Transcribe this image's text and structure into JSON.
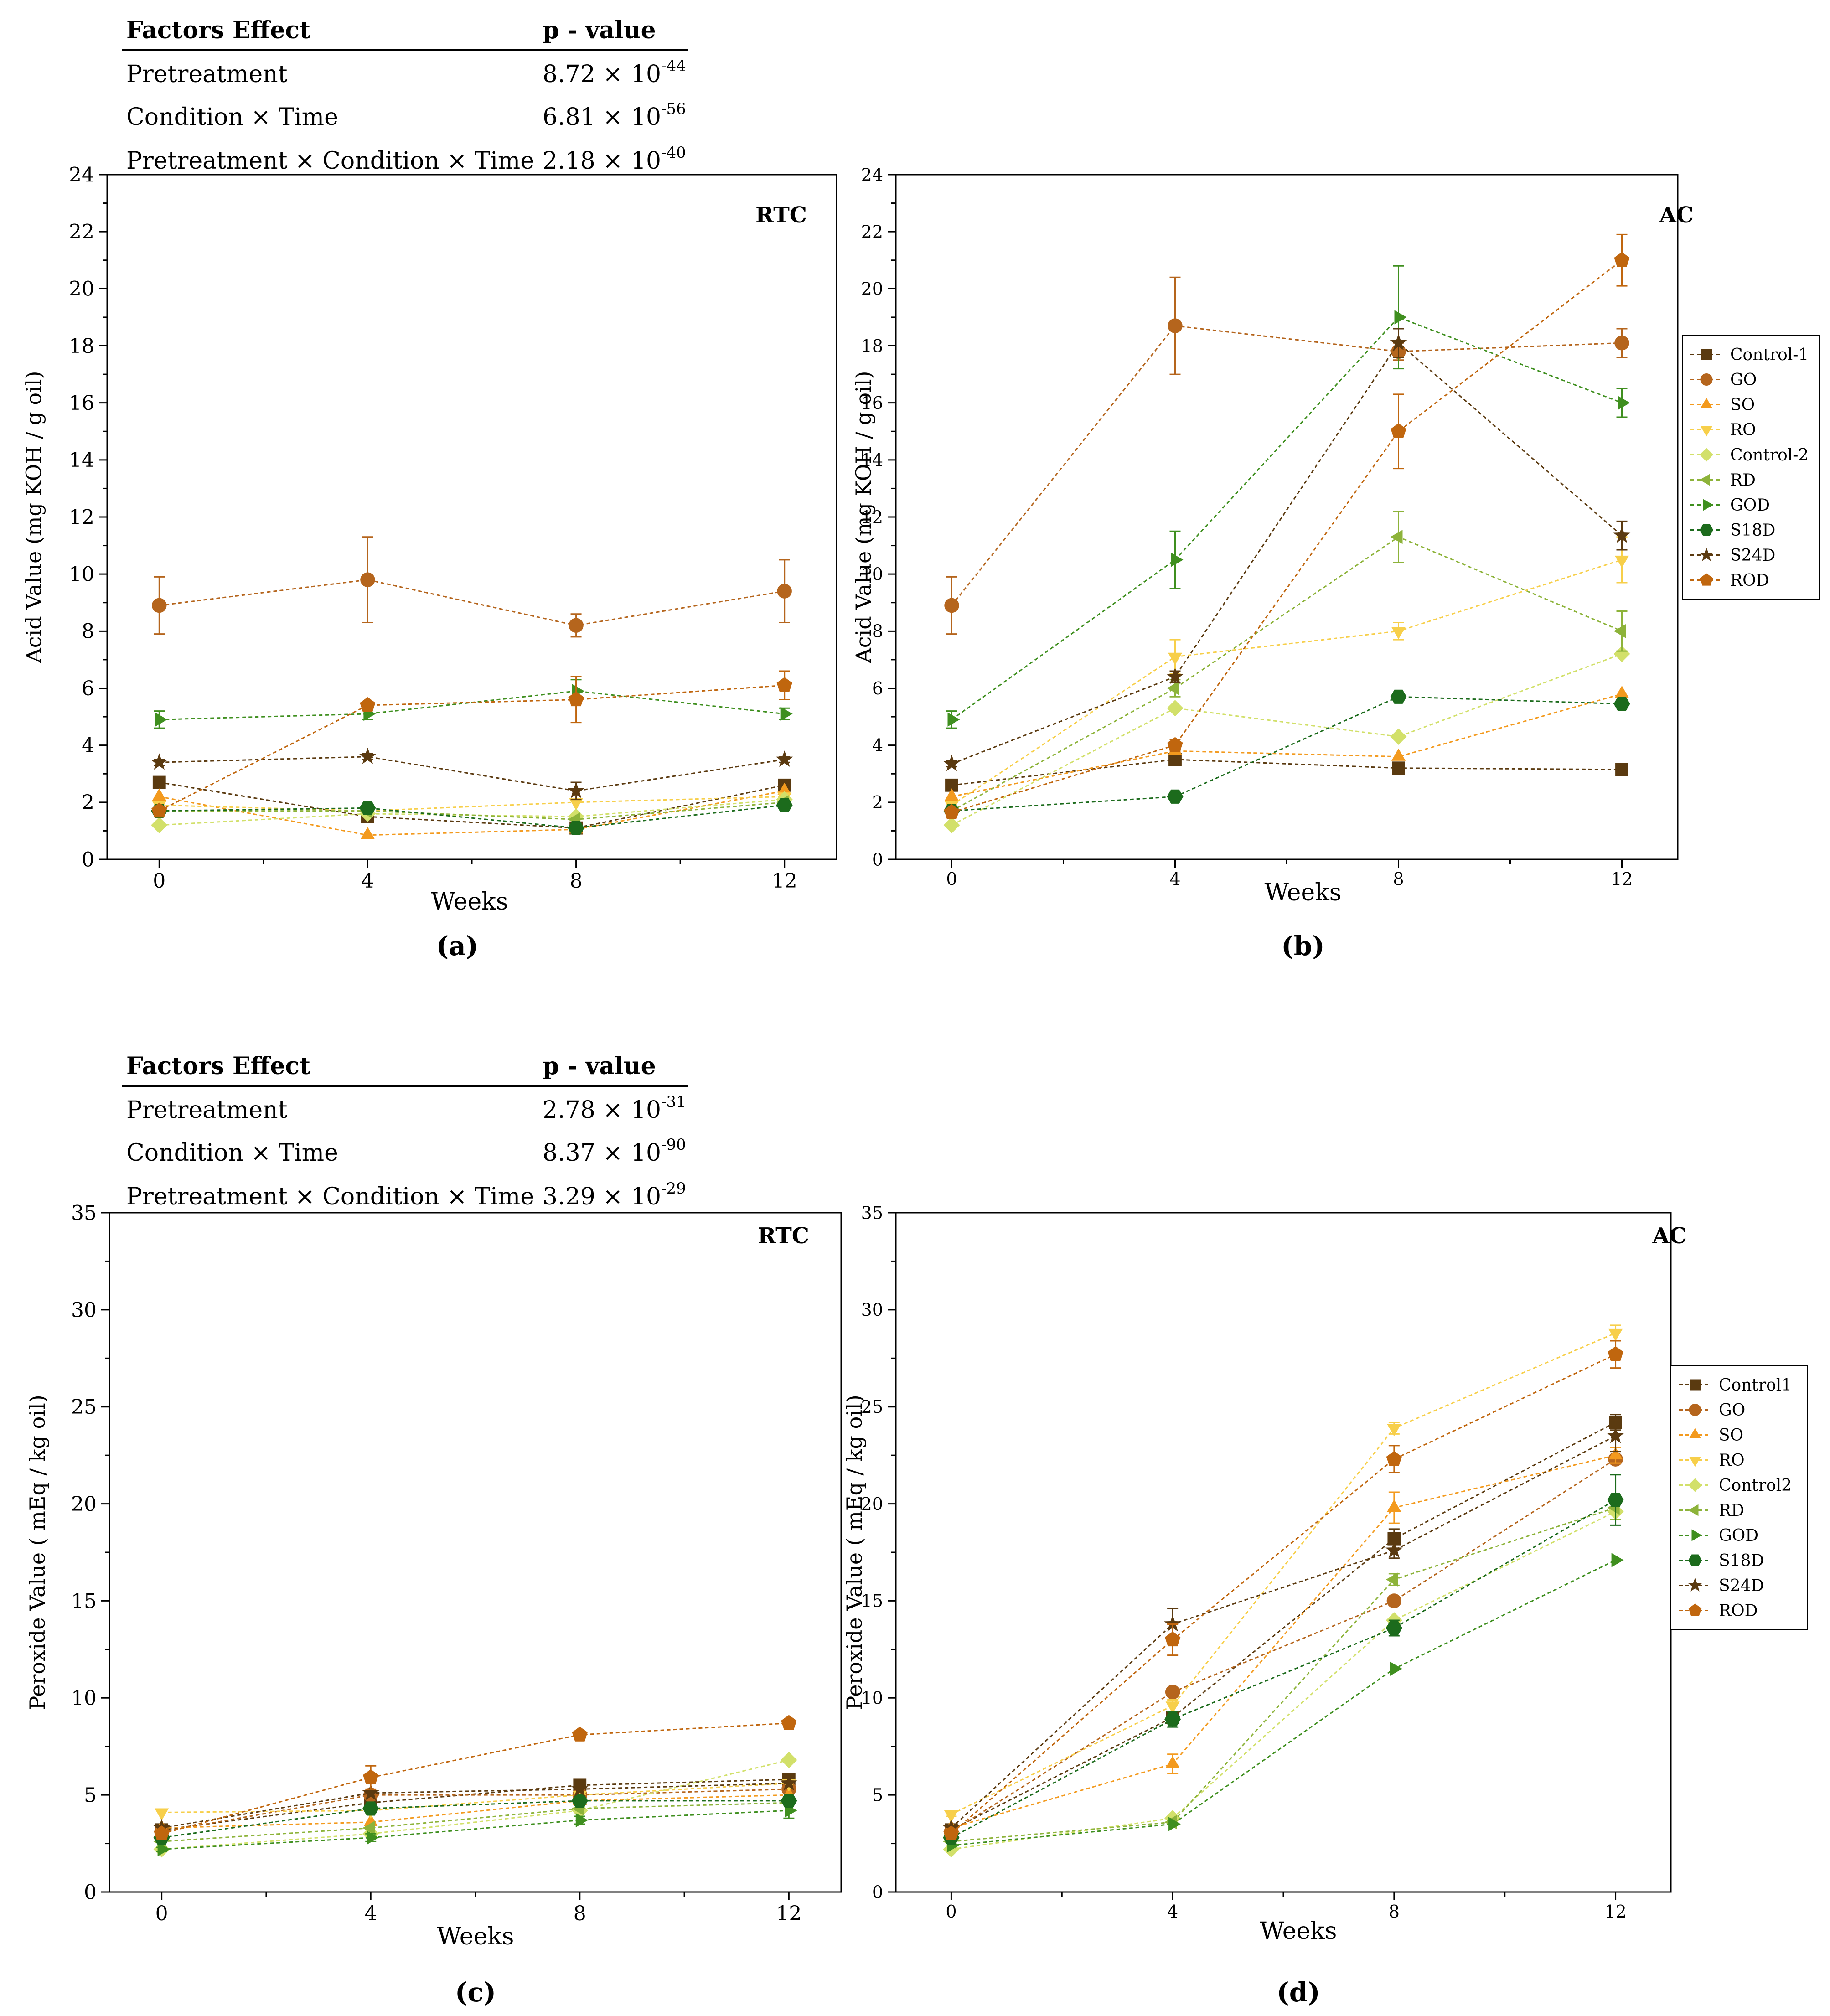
{
  "colors": {
    "Control-1": "#5a3a10",
    "GO": "#b5651d",
    "SO": "#f39a1e",
    "RO": "#f7cf4a",
    "Control-2": "#d2e06a",
    "RD": "#8db33a",
    "GOD": "#3f8f1f",
    "S18D": "#1c6b1c",
    "S24D": "#5b3a10",
    "ROD": "#c0660e"
  },
  "markers": {
    "Control-1": "square",
    "GO": "circle",
    "SO": "triangle-up",
    "RO": "triangle-down",
    "Control-2": "diamond",
    "RD": "triangle-left",
    "GOD": "triangle-right",
    "S18D": "hexagon",
    "S24D": "star",
    "ROD": "pentagon"
  },
  "tables": [
    {
      "header_factor": "Factors Effect",
      "header_p": "p - value",
      "rows": [
        {
          "factor": "Pretreatment",
          "mantissa": "8.72 ×",
          "base": "10",
          "exp": "-44"
        },
        {
          "factor": "Condition × Time",
          "mantissa": "6.81 ×",
          "base": "10",
          "exp": "-56"
        },
        {
          "factor": "Pretreatment × Condition × Time",
          "mantissa": "2.18 ×",
          "base": "10",
          "exp": "-40"
        }
      ]
    },
    {
      "header_factor": "Factors Effect",
      "header_p": "p - value",
      "rows": [
        {
          "factor": "Pretreatment",
          "mantissa": "2.78 ×",
          "base": "10",
          "exp": "-31"
        },
        {
          "factor": "Condition × Time",
          "mantissa": "8.37 ×",
          "base": "10",
          "exp": "-90"
        },
        {
          "factor": "Pretreatment × Condition × Time",
          "mantissa": "3.29 ×",
          "base": "10",
          "exp": "-29"
        }
      ]
    }
  ],
  "chart_data": [
    {
      "type": "line",
      "panel": "(a)",
      "title": "RTC",
      "xlabel": "Weeks",
      "ylabel": "Acid Value (mg KOH / g oil)",
      "x": [
        0,
        4,
        8,
        12
      ],
      "xlim": [
        -1,
        13
      ],
      "ylim": [
        0,
        24
      ],
      "yticks": [
        0,
        2,
        4,
        6,
        8,
        10,
        12,
        14,
        16,
        18,
        20,
        22,
        24
      ],
      "xticks": [
        0,
        4,
        8,
        12
      ],
      "series": [
        {
          "name": "Control-1",
          "values": [
            2.7,
            1.5,
            1.1,
            2.6
          ]
        },
        {
          "name": "GO",
          "values": [
            8.9,
            9.8,
            8.2,
            9.4
          ],
          "err": [
            1.0,
            1.5,
            0.4,
            1.1
          ]
        },
        {
          "name": "SO",
          "values": [
            2.2,
            0.85,
            1.05,
            2.4
          ]
        },
        {
          "name": "RO",
          "values": [
            1.9,
            1.7,
            2.0,
            2.2
          ]
        },
        {
          "name": "Control-2",
          "values": [
            1.2,
            1.6,
            1.5,
            2.1
          ]
        },
        {
          "name": "RD",
          "values": [
            1.7,
            1.7,
            1.4,
            2.0
          ]
        },
        {
          "name": "GOD",
          "values": [
            4.9,
            5.1,
            5.9,
            5.1
          ],
          "err": [
            0.3,
            0.2,
            0.4,
            0.2
          ]
        },
        {
          "name": "S18D",
          "values": [
            1.7,
            1.8,
            1.1,
            1.9
          ]
        },
        {
          "name": "S24D",
          "values": [
            3.4,
            3.6,
            2.4,
            3.5
          ],
          "err": [
            0.1,
            0.1,
            0.3,
            0.1
          ]
        },
        {
          "name": "ROD",
          "values": [
            1.7,
            5.4,
            5.6,
            6.1
          ],
          "err": [
            0.1,
            0.1,
            0.8,
            0.5
          ]
        }
      ]
    },
    {
      "type": "line",
      "panel": "(b)",
      "title": "AC",
      "xlabel": "Weeks",
      "ylabel": "Acid Value (mg KOH / g oil)",
      "x": [
        0,
        4,
        8,
        12
      ],
      "xlim": [
        -1,
        13
      ],
      "ylim": [
        0,
        24
      ],
      "yticks": [
        0,
        2,
        4,
        6,
        8,
        10,
        12,
        14,
        16,
        18,
        20,
        22,
        24
      ],
      "xticks": [
        0,
        4,
        8,
        12
      ],
      "legend": "right-outside",
      "series": [
        {
          "name": "Control-1",
          "values": [
            2.6,
            3.5,
            3.2,
            3.15
          ]
        },
        {
          "name": "GO",
          "values": [
            8.9,
            18.7,
            17.8,
            18.1
          ],
          "err": [
            1.0,
            1.7,
            0.3,
            0.5
          ]
        },
        {
          "name": "SO",
          "values": [
            2.2,
            3.8,
            3.6,
            5.8
          ]
        },
        {
          "name": "RO",
          "values": [
            1.9,
            7.1,
            8.0,
            10.5
          ],
          "err": [
            0.1,
            0.6,
            0.3,
            0.8
          ]
        },
        {
          "name": "Control-2",
          "values": [
            1.2,
            5.3,
            4.3,
            7.2
          ]
        },
        {
          "name": "RD",
          "values": [
            1.7,
            6.0,
            11.3,
            8.0
          ],
          "err": [
            0.1,
            0.3,
            0.9,
            0.7
          ]
        },
        {
          "name": "GOD",
          "values": [
            4.9,
            10.5,
            19.0,
            16.0
          ],
          "err": [
            0.3,
            1.0,
            1.8,
            0.5
          ]
        },
        {
          "name": "S18D",
          "values": [
            1.7,
            2.2,
            5.7,
            5.45
          ]
        },
        {
          "name": "S24D",
          "values": [
            3.35,
            6.4,
            18.1,
            11.35
          ],
          "err": [
            0.1,
            0.2,
            0.5,
            0.5
          ]
        },
        {
          "name": "ROD",
          "values": [
            1.65,
            4.0,
            15.0,
            21.0
          ],
          "err": [
            0.1,
            0.2,
            1.3,
            0.9
          ]
        }
      ]
    },
    {
      "type": "line",
      "panel": "(c)",
      "title": "RTC",
      "xlabel": "Weeks",
      "ylabel": "Peroxide Value ( mEq / kg oil)",
      "x": [
        0,
        4,
        8,
        12
      ],
      "xlim": [
        -1,
        13
      ],
      "ylim": [
        0,
        35
      ],
      "yticks": [
        0,
        5,
        10,
        15,
        20,
        25,
        30,
        35
      ],
      "xticks": [
        0,
        4,
        8,
        12
      ],
      "series": [
        {
          "name": "Control-1",
          "values": [
            3.2,
            4.6,
            5.5,
            5.8
          ]
        },
        {
          "name": "GO",
          "values": [
            3.1,
            5.0,
            5.0,
            5.3
          ]
        },
        {
          "name": "SO",
          "values": [
            3.3,
            3.6,
            4.7,
            5.0
          ]
        },
        {
          "name": "RO",
          "values": [
            4.1,
            4.2,
            5.0,
            5.6
          ]
        },
        {
          "name": "Control-2",
          "values": [
            2.2,
            3.0,
            4.2,
            6.8
          ]
        },
        {
          "name": "RD",
          "values": [
            2.6,
            3.3,
            4.3,
            4.6
          ]
        },
        {
          "name": "GOD",
          "values": [
            2.2,
            2.8,
            3.7,
            4.2
          ],
          "err": [
            0.1,
            0.2,
            0.2,
            0.4
          ]
        },
        {
          "name": "S18D",
          "values": [
            2.8,
            4.3,
            4.7,
            4.7
          ]
        },
        {
          "name": "S24D",
          "values": [
            3.3,
            5.1,
            5.3,
            5.6
          ]
        },
        {
          "name": "ROD",
          "values": [
            3.0,
            5.9,
            8.1,
            8.7
          ],
          "err": [
            0.1,
            0.6,
            0.1,
            0.1
          ]
        }
      ]
    },
    {
      "type": "line",
      "panel": "(d)",
      "title": "AC",
      "xlabel": "Weeks",
      "ylabel": "Peroxide Value ( mEq / kg oil)",
      "x": [
        0,
        4,
        8,
        12
      ],
      "xlim": [
        -1,
        13
      ],
      "ylim": [
        0,
        35
      ],
      "yticks": [
        0,
        5,
        10,
        15,
        20,
        25,
        30,
        35
      ],
      "xticks": [
        0,
        4,
        8,
        12
      ],
      "legend": "right",
      "series": [
        {
          "name": "Control1",
          "key": "Control-1",
          "values": [
            3.2,
            9.0,
            18.2,
            24.2
          ],
          "err": [
            0.1,
            0.3,
            0.5,
            0.4
          ]
        },
        {
          "name": "GO",
          "values": [
            3.1,
            10.3,
            15.0,
            22.3
          ]
        },
        {
          "name": "SO",
          "values": [
            3.3,
            6.6,
            19.8,
            22.5
          ],
          "err": [
            0.1,
            0.5,
            0.8,
            0.4
          ]
        },
        {
          "name": "RO",
          "values": [
            4.0,
            9.6,
            23.9,
            28.8
          ],
          "err": [
            0.1,
            0.3,
            0.3,
            0.4
          ]
        },
        {
          "name": "Control2",
          "key": "Control-2",
          "values": [
            2.2,
            3.8,
            14.0,
            19.6
          ]
        },
        {
          "name": "RD",
          "values": [
            2.6,
            3.6,
            16.1,
            19.8
          ],
          "err": [
            0.1,
            0.1,
            0.3,
            0.6
          ]
        },
        {
          "name": "GOD",
          "values": [
            2.4,
            3.5,
            11.5,
            17.1
          ]
        },
        {
          "name": "S18D",
          "values": [
            2.8,
            8.9,
            13.6,
            20.2
          ],
          "err": [
            0.1,
            0.4,
            0.4,
            1.3
          ]
        },
        {
          "name": "S24D",
          "values": [
            3.3,
            13.8,
            17.6,
            23.5
          ],
          "err": [
            0.1,
            0.8,
            0.4,
            0.8
          ]
        },
        {
          "name": "ROD",
          "values": [
            3.0,
            13.0,
            22.3,
            27.7
          ],
          "err": [
            0.1,
            0.8,
            0.7,
            0.7
          ]
        }
      ]
    }
  ]
}
